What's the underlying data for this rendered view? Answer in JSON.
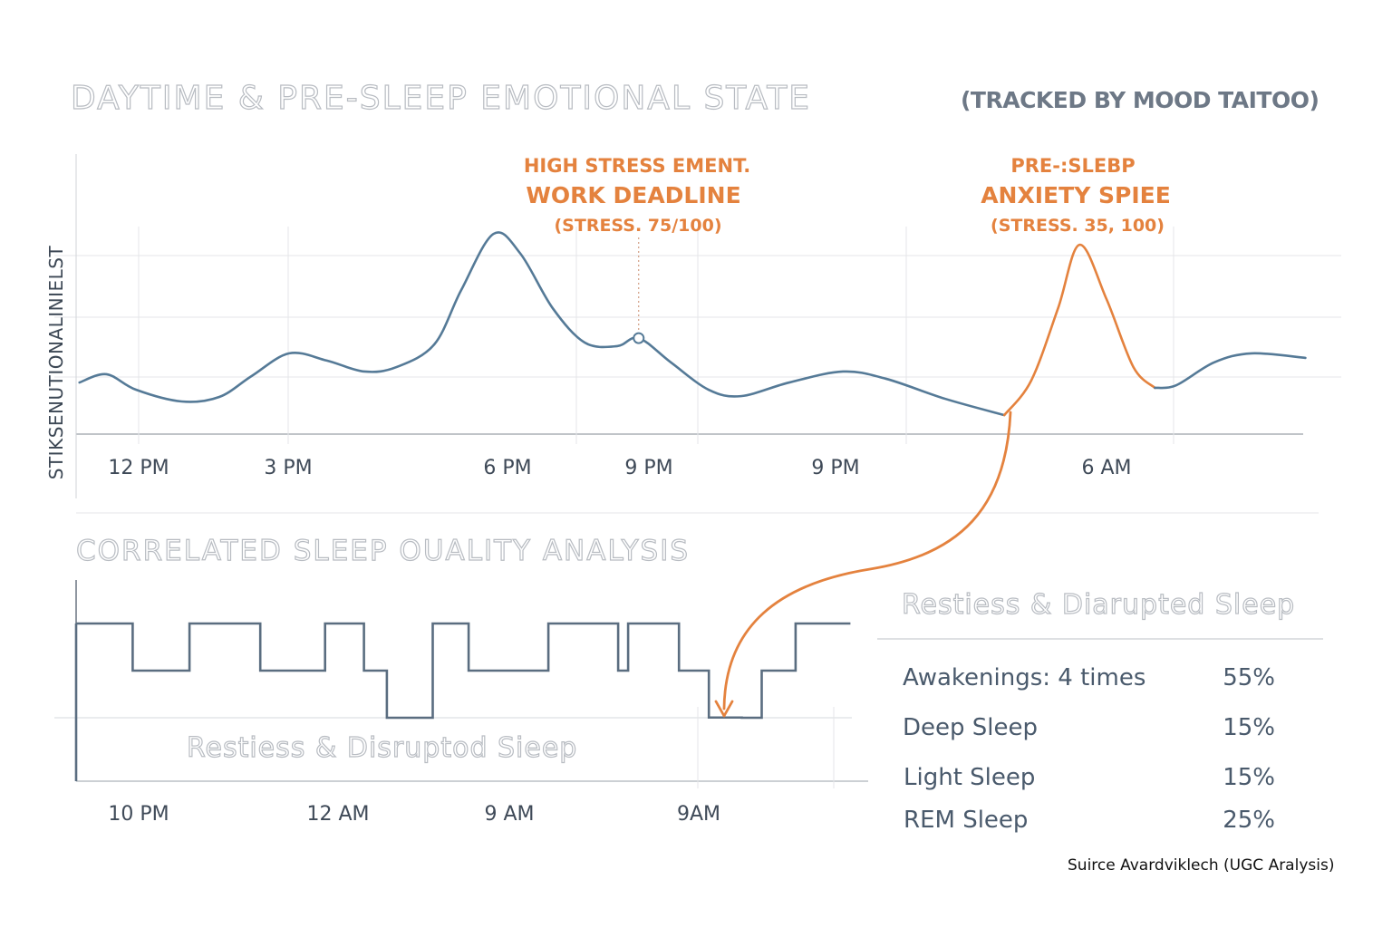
{
  "title": "DAYTIME & PRE-SLEEP EMOTIONAL STATE",
  "subtitle": "(TRACKED BY MOOD TAITOO)",
  "colors": {
    "stress_line": "#557a97",
    "anxiety_line": "#e4823e",
    "hypnogram": "#5a6d80",
    "grid": "#e4e6e9",
    "axis": "#9aa0a8"
  },
  "chart_data": [
    {
      "type": "line",
      "ylabel": "STIKSENUTIONALINIELST",
      "x_unit": "hour of day (24 = midnight, 30 = 6 AM next day)",
      "ylim": [
        0,
        100
      ],
      "x_tick_labels": [
        "12 PM",
        "3 PM",
        "6 PM",
        "9 PM",
        "9 PM",
        "6 AM"
      ],
      "grid": true,
      "series": [
        {
          "color_key": "stress_line",
          "points": [
            [
              10.9,
              19.3
            ],
            [
              11.4,
              22.4
            ],
            [
              11.95,
              16.6
            ],
            [
              12.8,
              12.2
            ],
            [
              13.5,
              13.9
            ],
            [
              14.1,
              21.7
            ],
            [
              14.8,
              30.2
            ],
            [
              15.5,
              27.5
            ],
            [
              16.2,
              23.4
            ],
            [
              16.8,
              25.1
            ],
            [
              17.5,
              33.6
            ],
            [
              18.0,
              53.9
            ],
            [
              18.6,
              74.9
            ],
            [
              19.1,
              67.5
            ],
            [
              19.7,
              47.1
            ],
            [
              20.3,
              34.2
            ],
            [
              20.9,
              32.9
            ],
            [
              21.3,
              35.9
            ],
            [
              21.9,
              26.8
            ],
            [
              22.6,
              16.6
            ],
            [
              23.2,
              14.2
            ],
            [
              24.1,
              19.3
            ],
            [
              25.1,
              23.4
            ],
            [
              25.9,
              20.7
            ],
            [
              27.0,
              13.2
            ],
            [
              28.1,
              7.1
            ]
          ]
        },
        {
          "color_key": "anxiety_line",
          "points": [
            [
              28.1,
              7.1
            ],
            [
              28.6,
              20.0
            ],
            [
              29.1,
              47.1
            ],
            [
              29.5,
              70.8
            ],
            [
              30.0,
              50.5
            ],
            [
              30.5,
              25.1
            ],
            [
              30.9,
              17.3
            ]
          ]
        },
        {
          "color_key": "stress_line",
          "points": [
            [
              30.9,
              17.3
            ],
            [
              31.3,
              18.3
            ],
            [
              32.0,
              26.8
            ],
            [
              32.7,
              30.2
            ],
            [
              33.7,
              28.5
            ]
          ]
        }
      ],
      "annotations": [
        {
          "lines": [
            "HIGH STRESS EMENT.",
            "WORK DEADLINE",
            "(STRESS. 75/100)"
          ],
          "marker": [
            21.3,
            35.9
          ]
        },
        {
          "lines": [
            "PRE-:SLEBP",
            "ANXIETY SPIEE",
            "(STRESS. 35, 100)"
          ]
        }
      ]
    },
    {
      "type": "line",
      "title": "CORRELATED SLEEP OUALITY ANALYSIS",
      "subtype": "step hypnogram",
      "x_unit": "hour (22 = 10 PM, 24 = 12 AM)",
      "y_unit": "sleep depth level (0 = top)",
      "x_tick_labels": [
        "10 PM",
        "12 AM",
        "9 AM",
        "9AM"
      ],
      "label": "Restiess & Disruptod Sieep",
      "steps": [
        [
          21.37,
          0
        ],
        [
          21.94,
          1
        ],
        [
          22.51,
          0
        ],
        [
          23.22,
          1
        ],
        [
          23.87,
          0
        ],
        [
          24.26,
          1
        ],
        [
          24.49,
          2
        ],
        [
          24.95,
          0
        ],
        [
          25.31,
          1
        ],
        [
          26.11,
          0
        ],
        [
          26.81,
          1
        ],
        [
          26.91,
          0
        ],
        [
          27.42,
          1
        ],
        [
          27.72,
          2.3
        ],
        [
          28.05,
          2
        ],
        [
          28.25,
          1
        ],
        [
          28.59,
          0
        ],
        [
          29.14,
          0
        ]
      ]
    }
  ],
  "panel": {
    "title": "Restiess & Diarupted Sleep",
    "rows": [
      {
        "label": "Awakenings: 4 times",
        "value": "55%"
      },
      {
        "label": "Deep Sleep",
        "value": "15%"
      },
      {
        "label": "Light Sleep",
        "value": "15%"
      },
      {
        "label": "REM Sleep",
        "value": "25%"
      }
    ]
  },
  "source": "Suirce  Avardviklech (UGC Aralysis)"
}
